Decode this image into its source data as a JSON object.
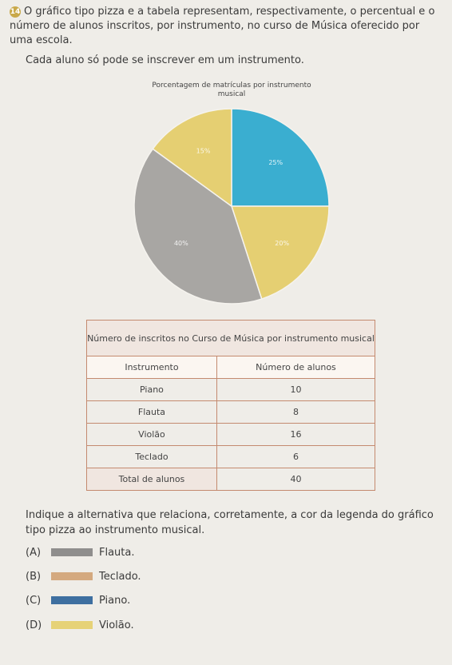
{
  "question": {
    "number": "14",
    "intro": "O gráfico tipo pizza e a tabela representam, respectivamente, o percentual e o número de alunos inscritos, por instrumento, no curso de Música oferecido por uma escola.",
    "note": "Cada aluno só pode se inscrever em um instrumento.",
    "ask": "Indique a alternativa que relaciona, corretamente, a cor da legenda do gráfico tipo pizza ao instrumento musical."
  },
  "chart_data": {
    "type": "pie",
    "title": "Porcentagem de matrículas por instrumento musical",
    "slices": [
      {
        "label": "25%",
        "value": 25,
        "color": "#3aaed0"
      },
      {
        "label": "20%",
        "value": 20,
        "color": "#e5cf72"
      },
      {
        "label": "40%",
        "value": 40,
        "color": "#a8a6a3"
      },
      {
        "label": "15%",
        "value": 15,
        "color": "#e5cf72"
      }
    ]
  },
  "table": {
    "caption": "Número de inscritos no Curso de Música por instrumento musical",
    "headers": [
      "Instrumento",
      "Número de alunos"
    ],
    "rows": [
      [
        "Piano",
        "10"
      ],
      [
        "Flauta",
        "8"
      ],
      [
        "Violão",
        "16"
      ],
      [
        "Teclado",
        "6"
      ]
    ],
    "total": [
      "Total de alunos",
      "40"
    ]
  },
  "options": [
    {
      "letter": "(A)",
      "label": "Flauta.",
      "color": "#8f8e8d"
    },
    {
      "letter": "(B)",
      "label": "Teclado.",
      "color": "#d4a97f"
    },
    {
      "letter": "(C)",
      "label": "Piano.",
      "color": "#3e6fa0"
    },
    {
      "letter": "(D)",
      "label": "Violão.",
      "color": "#e6d277"
    }
  ]
}
